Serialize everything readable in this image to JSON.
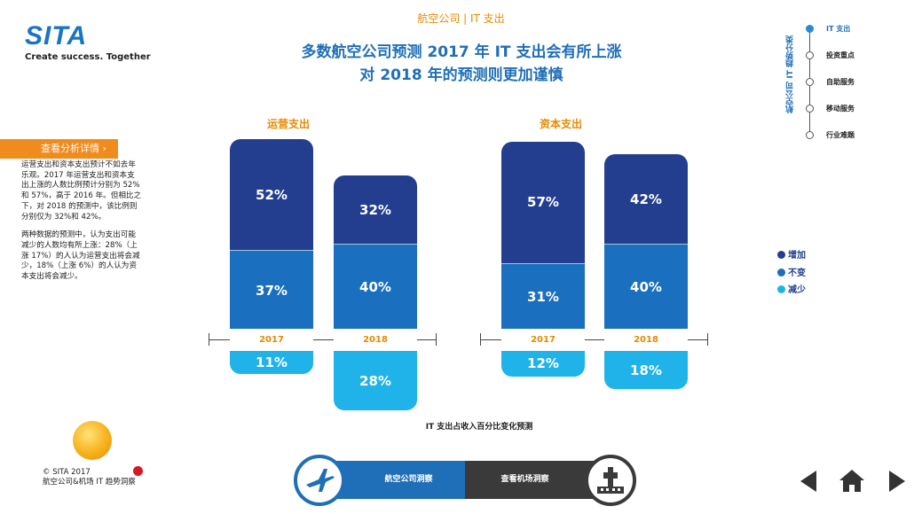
{
  "header": {
    "logo": "SITA",
    "tagline": "Create success. Together",
    "breadcrumb": "航空公司 | IT 支出",
    "title_line1": "多数航空公司预测 2017 年 IT 支出会有所上涨",
    "title_line2": "对 2018 年的预测则更加谨慎"
  },
  "left_panel": {
    "button_label": "查看分析详情 ›",
    "paragraph1": "运营支出和资本支出预计不如去年乐观。2017 年运营支出和资本支出上涨的人数比例预计分别为 52%和 57%，高于 2016 年。但相比之下，对 2018 的预测中，该比例则分别仅为 32%和 42%。",
    "paragraph2": "两种数据的预测中，认为支出可能减少的人数均有所上涨：28%（上涨 17%）的人认为运营支出将会减少，18%（上涨 6%）的人认为资本支出将会减少。"
  },
  "right_nav": {
    "vertical_label": "航空公司 IT 趋势分类",
    "items": [
      {
        "label": "IT 支出",
        "active": true
      },
      {
        "label": "投资重点",
        "active": false
      },
      {
        "label": "自助服务",
        "active": false
      },
      {
        "label": "移动服务",
        "active": false
      },
      {
        "label": "行业难题",
        "active": false
      }
    ]
  },
  "legend": [
    {
      "label": "增加",
      "color": "#243e8f"
    },
    {
      "label": "不变",
      "color": "#1a6fbe"
    },
    {
      "label": "减少",
      "color": "#1fb3ea"
    }
  ],
  "chart_data": [
    {
      "type": "bar",
      "title": "运营支出",
      "categories": [
        "2017",
        "2018"
      ],
      "series": [
        {
          "name": "增加",
          "values": [
            52,
            32
          ]
        },
        {
          "name": "不变",
          "values": [
            37,
            40
          ]
        },
        {
          "name": "减少",
          "values": [
            11,
            28
          ]
        }
      ],
      "labels": {
        "increase": [
          "52%",
          "32%"
        ],
        "same": [
          "37%",
          "40%"
        ],
        "decrease": [
          "11%",
          "28%"
        ]
      }
    },
    {
      "type": "bar",
      "title": "资本支出",
      "categories": [
        "2017",
        "2018"
      ],
      "series": [
        {
          "name": "增加",
          "values": [
            57,
            42
          ]
        },
        {
          "name": "不变",
          "values": [
            31,
            40
          ]
        },
        {
          "name": "减少",
          "values": [
            12,
            18
          ]
        }
      ],
      "labels": {
        "increase": [
          "57%",
          "42%"
        ],
        "same": [
          "31%",
          "40%"
        ],
        "decrease": [
          "12%",
          "18%"
        ]
      }
    }
  ],
  "caption": "IT 支出占收入百分比变化预测",
  "footer": {
    "copyright": "© SITA 2017",
    "subtitle": "航空公司&机场 IT 趋势洞察",
    "tab_airline": "航空公司洞察",
    "tab_airport": "查看机场洞察"
  },
  "colors": {
    "increase": "#243e8f",
    "same": "#1a6fbe",
    "decrease": "#1fb3ea"
  }
}
